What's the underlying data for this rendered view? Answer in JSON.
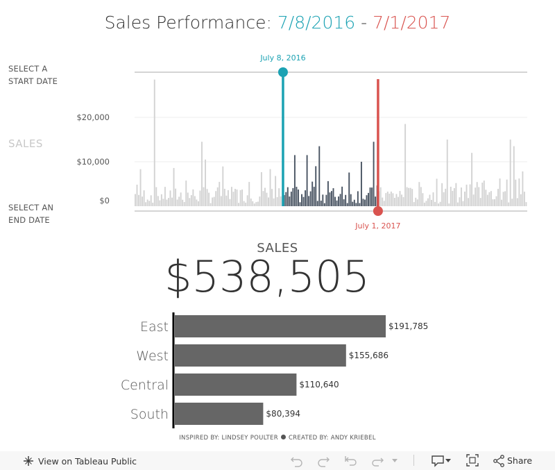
{
  "title": {
    "prefix": "Sales Performance: ",
    "start": "7/8/2016",
    "sep": " - ",
    "end": "7/1/2017"
  },
  "side_labels": {
    "start": "SELECT A\nSTART DATE",
    "end": "SELECT AN\nEND DATE",
    "sales": "SALES"
  },
  "colors": {
    "start": "#1ba2b3",
    "end": "#d9534f",
    "selected_bar": "#4a5563",
    "unselected_bar": "#d3d3d3",
    "region_bar": "#666666"
  },
  "kpi": {
    "label": "SALES",
    "value": "$538,505"
  },
  "credits": {
    "left": "INSPIRED BY: LINDSEY POULTER",
    "right": "CREATED BY: ANDY KRIEBEL"
  },
  "footer": {
    "view_label": "View on Tableau Public",
    "share_label": "Share"
  },
  "chart_data": [
    {
      "type": "bar",
      "title": "",
      "ylabel": "",
      "ylim": [
        0,
        30000
      ],
      "yticks": [
        "$0",
        "$10,000",
        "$20,000"
      ],
      "start_marker": {
        "label": "July 8, 2016"
      },
      "end_marker": {
        "label": "July 1, 2017"
      },
      "selection": {
        "start": 0.378,
        "end": 0.62
      },
      "peaks": [
        {
          "pos": 0.05,
          "value": 28500,
          "selected": false
        },
        {
          "pos": 0.17,
          "value": 14500,
          "selected": false
        },
        {
          "pos": 0.18,
          "value": 10500,
          "selected": false
        },
        {
          "pos": 0.41,
          "value": 11500,
          "selected": false
        },
        {
          "pos": 0.44,
          "value": 11500,
          "selected": true
        },
        {
          "pos": 0.46,
          "value": 9000,
          "selected": true
        },
        {
          "pos": 0.47,
          "value": 13500,
          "selected": true
        },
        {
          "pos": 0.58,
          "value": 10000,
          "selected": true
        },
        {
          "pos": 0.61,
          "value": 14500,
          "selected": false
        },
        {
          "pos": 0.69,
          "value": 18500,
          "selected": false
        },
        {
          "pos": 0.8,
          "value": 15000,
          "selected": false
        },
        {
          "pos": 0.86,
          "value": 12000,
          "selected": false
        },
        {
          "pos": 0.96,
          "value": 15000,
          "selected": false
        },
        {
          "pos": 0.97,
          "value": 13500,
          "selected": false
        }
      ]
    },
    {
      "type": "bar",
      "orientation": "horizontal",
      "categories": [
        "East",
        "West",
        "Central",
        "South"
      ],
      "values": [
        191785,
        155686,
        110640,
        80394
      ],
      "value_labels": [
        "$191,785",
        "$155,686",
        "$110,640",
        "$80,394"
      ]
    }
  ]
}
